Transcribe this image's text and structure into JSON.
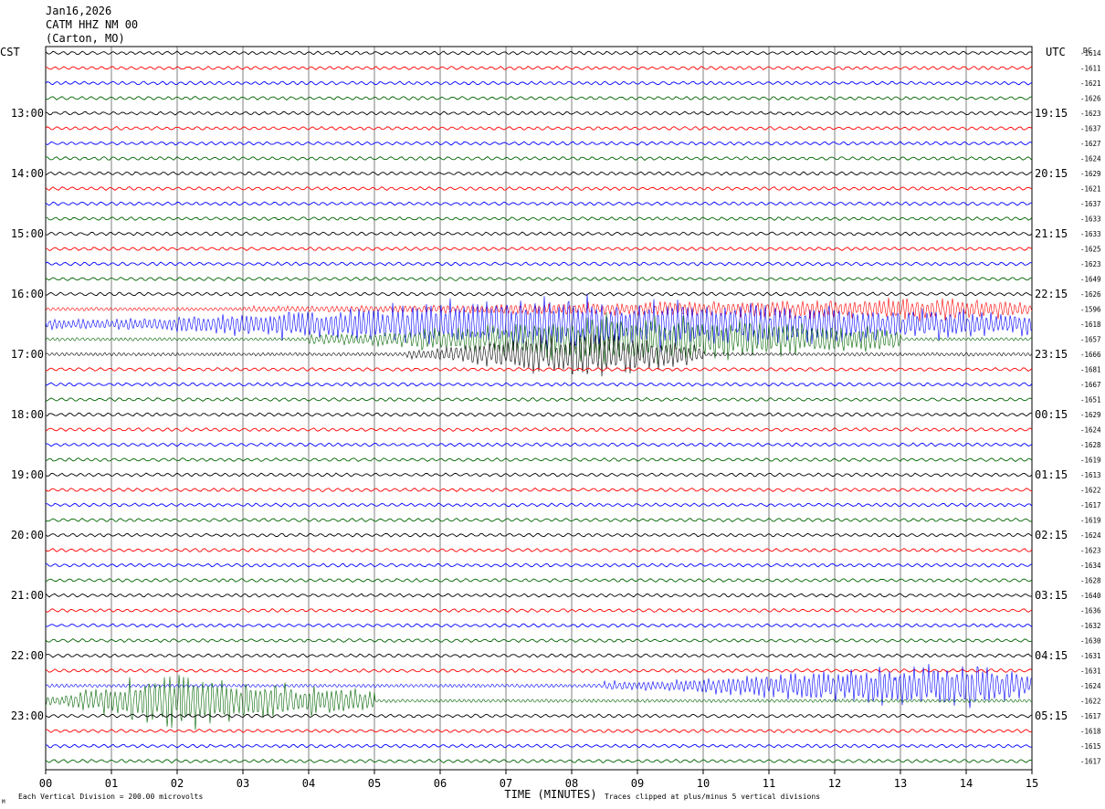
{
  "header": {
    "date": "Jan16,2026",
    "station": "CATM HHZ NM 00",
    "location": "(Carton, MO)"
  },
  "left_axis_title": "CST",
  "right_axis_title": "UTC",
  "dc_title": "DC",
  "footer": {
    "scale": "Each Vertical Division =  200.00 microvolts",
    "clip": "Traces clipped at plus/minus 5 vertical divisions",
    "corner_mark": "M"
  },
  "chart_data": {
    "type": "line",
    "title": "",
    "xlabel": "TIME (MINUTES)",
    "xlim": [
      0,
      15
    ],
    "x_ticks": [
      "00",
      "01",
      "02",
      "03",
      "04",
      "05",
      "06",
      "07",
      "08",
      "09",
      "10",
      "11",
      "12",
      "13",
      "14",
      "15"
    ],
    "trace_colors": [
      "#000000",
      "#ff0000",
      "#0000ff",
      "#006400"
    ],
    "hour_labels_cst": [
      "13:00",
      "14:00",
      "15:00",
      "16:00",
      "17:00",
      "18:00",
      "19:00",
      "20:00",
      "21:00",
      "22:00",
      "23:00"
    ],
    "hour_labels_utc": [
      "19:15",
      "20:15",
      "21:15",
      "22:15",
      "23:15",
      "00:15",
      "01:15",
      "02:15",
      "03:15",
      "04:15",
      "05:15"
    ],
    "dc_values": [
      "-1614",
      "-1611",
      "-1621",
      "-1626",
      "-1623",
      "-1637",
      "-1627",
      "-1624",
      "-1629",
      "-1621",
      "-1637",
      "-1633",
      "-1633",
      "-1625",
      "-1623",
      "-1649",
      "-1626",
      "-1596",
      "-1618",
      "-1657",
      "-1666",
      "-1681",
      "-1667",
      "-1651",
      "-1629",
      "-1624",
      "-1628",
      "-1619",
      "-1613",
      "-1622",
      "-1617",
      "-1619",
      "-1624",
      "-1623",
      "-1634",
      "-1628",
      "-1640",
      "-1636",
      "-1632",
      "-1630",
      "-1631",
      "-1631",
      "-1624",
      "-1622",
      "-1617",
      "-1618",
      "-1615",
      "-1617"
    ],
    "events": [
      {
        "trace": 17,
        "start_min": 3.0,
        "end_min": 15.0,
        "peak_min": 14.0,
        "level": 0.35
      },
      {
        "trace": 18,
        "start_min": 0.0,
        "end_min": 15.0,
        "peak_min": 7.5,
        "level": 0.9
      },
      {
        "trace": 19,
        "start_min": 4.0,
        "end_min": 13.0,
        "peak_min": 9.0,
        "level": 0.9
      },
      {
        "trace": 20,
        "start_min": 5.5,
        "end_min": 10.0,
        "peak_min": 8.0,
        "level": 0.8
      },
      {
        "trace": 42,
        "start_min": 8.5,
        "end_min": 15.0,
        "peak_min": 14.0,
        "level": 0.8
      },
      {
        "trace": 43,
        "start_min": 0.0,
        "end_min": 5.0,
        "peak_min": 1.7,
        "level": 0.9
      }
    ]
  }
}
